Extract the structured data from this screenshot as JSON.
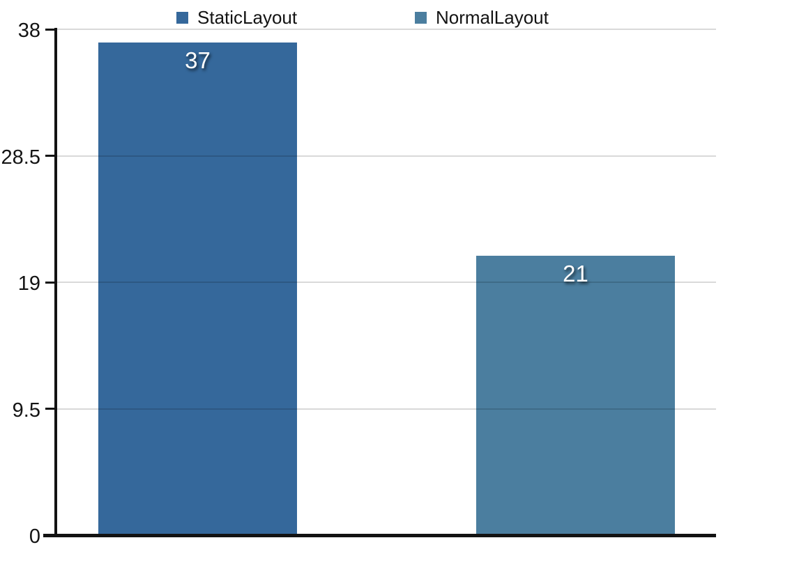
{
  "chart_data": {
    "type": "bar",
    "title": "",
    "xlabel": "",
    "ylabel": "",
    "ylim": [
      0,
      38
    ],
    "yticks": [
      0,
      9.5,
      19,
      28.5,
      38
    ],
    "ytick_labels": [
      "0",
      "9.5",
      "19",
      "28.5",
      "38"
    ],
    "grid": true,
    "grid_over_bars": true,
    "legend_position": "top",
    "series": [
      {
        "name": "StaticLayout",
        "value": 37,
        "value_label": "37",
        "color": "#35689B"
      },
      {
        "name": "NormalLayout",
        "value": 21,
        "value_label": "21",
        "color": "#4B7E9F"
      }
    ],
    "colors": {
      "background": "#FFFFFF",
      "axis": "#131313",
      "gridline": "#D8D8D8",
      "tick_label": "#141414",
      "value_label_text": "#FFFFFF",
      "value_label_shadow": "rgba(0,0,0,0.65)"
    }
  }
}
